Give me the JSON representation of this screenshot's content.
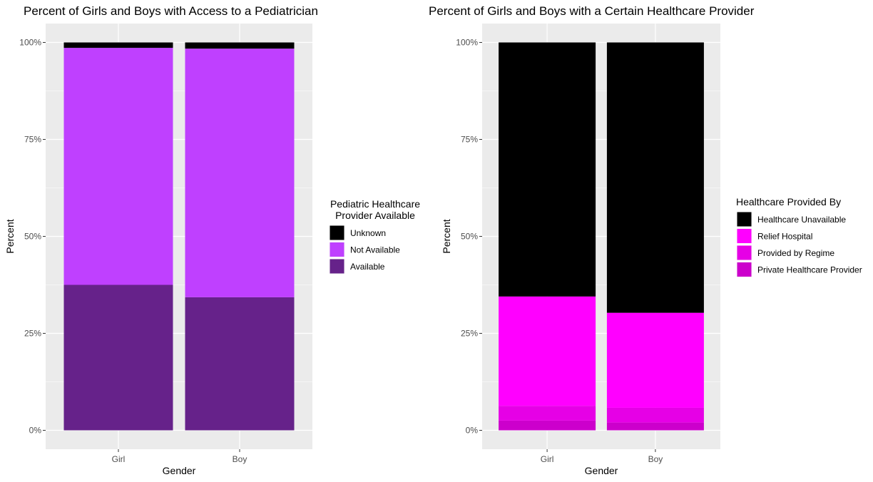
{
  "chart_data": [
    {
      "type": "bar",
      "stacked": true,
      "percent_scale": true,
      "title": "Percent of Girls and Boys with Access to a Pediatrician",
      "xlabel": "Gender",
      "ylabel": "Percent",
      "ylim": [
        0,
        1
      ],
      "yticks": [
        "0%",
        "25%",
        "50%",
        "75%",
        "100%"
      ],
      "categories": [
        "Girl",
        "Boy"
      ],
      "legend_title": [
        "Pediatric Healthcare",
        "Provider Available"
      ],
      "legend_position": "right",
      "grid": true,
      "series": [
        {
          "name": "Available",
          "color": "#66228a",
          "values": [
            0.375,
            0.343
          ]
        },
        {
          "name": "Not Available",
          "color": "#bf40ff",
          "values": [
            0.611,
            0.641
          ]
        },
        {
          "name": "Unknown",
          "color": "#000000",
          "values": [
            0.014,
            0.016
          ]
        }
      ],
      "legend_order": [
        "Unknown",
        "Not Available",
        "Available"
      ]
    },
    {
      "type": "bar",
      "stacked": true,
      "percent_scale": true,
      "title": "Percent of Girls and Boys with a Certain Healthcare Provider",
      "xlabel": "Gender",
      "ylabel": "Percent",
      "ylim": [
        0,
        1
      ],
      "yticks": [
        "0%",
        "25%",
        "50%",
        "75%",
        "100%"
      ],
      "categories": [
        "Girl",
        "Boy"
      ],
      "legend_title": [
        "Healthcare Provided By"
      ],
      "legend_position": "right",
      "grid": true,
      "series": [
        {
          "name": "Private Healthcare Provider",
          "color": "#cc00cc",
          "values": [
            0.025,
            0.02
          ]
        },
        {
          "name": "Provided by Regime",
          "color": "#e600e6",
          "values": [
            0.038,
            0.038
          ]
        },
        {
          "name": "Relief Hospital",
          "color": "#ff00ff",
          "values": [
            0.282,
            0.245
          ]
        },
        {
          "name": "Healthcare Unavailable",
          "color": "#000000",
          "values": [
            0.655,
            0.697
          ]
        }
      ],
      "legend_order": [
        "Healthcare Unavailable",
        "Relief Hospital",
        "Provided by Regime",
        "Private Healthcare Provider"
      ]
    }
  ]
}
